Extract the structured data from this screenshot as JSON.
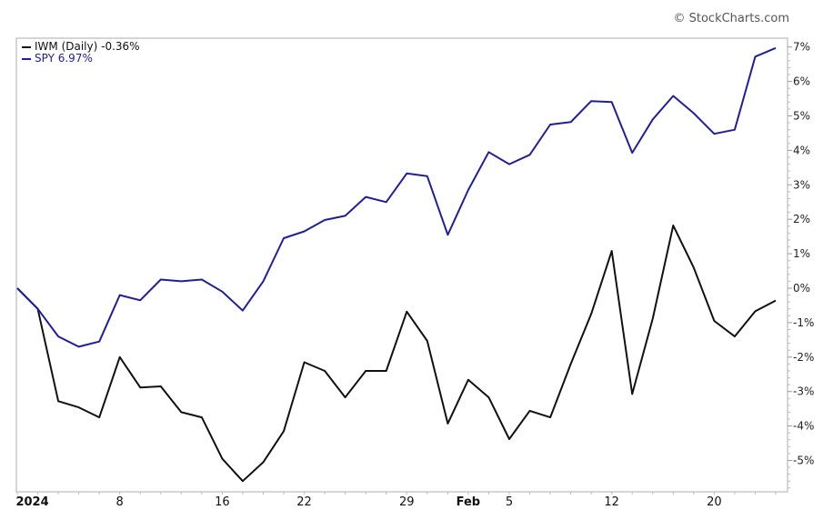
{
  "watermark": "© StockCharts.com",
  "chart_data": {
    "type": "line",
    "x": [
      "2023-12-29",
      "2024-01-02",
      "2024-01-03",
      "2024-01-04",
      "2024-01-05",
      "2024-01-08",
      "2024-01-09",
      "2024-01-10",
      "2024-01-11",
      "2024-01-12",
      "2024-01-16",
      "2024-01-17",
      "2024-01-18",
      "2024-01-19",
      "2024-01-22",
      "2024-01-23",
      "2024-01-24",
      "2024-01-25",
      "2024-01-26",
      "2024-01-29",
      "2024-01-30",
      "2024-01-31",
      "2024-02-01",
      "2024-02-02",
      "2024-02-05",
      "2024-02-06",
      "2024-02-07",
      "2024-02-08",
      "2024-02-09",
      "2024-02-12",
      "2024-02-13",
      "2024-02-14",
      "2024-02-15",
      "2024-02-16",
      "2024-02-20",
      "2024-02-21",
      "2024-02-22",
      "2024-02-23"
    ],
    "series": [
      {
        "name": "IWM (Daily) -0.36%",
        "color": "#111111",
        "values": [
          0,
          -0.6,
          -3.28,
          -3.46,
          -3.75,
          -2.0,
          -2.88,
          -2.85,
          -3.6,
          -3.75,
          -4.95,
          -5.6,
          -5.05,
          -4.15,
          -2.15,
          -2.4,
          -3.17,
          -2.4,
          -2.4,
          -0.68,
          -1.53,
          -3.93,
          -2.66,
          -3.17,
          -4.38,
          -3.56,
          -3.75,
          -2.2,
          -0.75,
          1.08,
          -3.07,
          -0.88,
          1.82,
          0.6,
          -0.95,
          -1.4,
          -0.67,
          -0.36
        ]
      },
      {
        "name": "SPY 6.97%",
        "color": "#1f1f9e",
        "values": [
          0,
          -0.6,
          -1.4,
          -1.7,
          -1.55,
          -0.2,
          -0.35,
          0.25,
          0.2,
          0.25,
          -0.1,
          -0.65,
          0.2,
          1.45,
          1.65,
          1.98,
          2.1,
          2.65,
          2.5,
          3.33,
          3.25,
          1.55,
          2.85,
          3.95,
          3.6,
          3.87,
          4.75,
          4.82,
          5.43,
          5.4,
          3.93,
          4.9,
          5.58,
          5.08,
          4.48,
          4.6,
          6.72,
          6.97
        ]
      }
    ],
    "x_ticks": [
      {
        "index": 1,
        "label": "2024",
        "bold": true
      },
      {
        "index": 5,
        "label": "8"
      },
      {
        "index": 10,
        "label": "16"
      },
      {
        "index": 14,
        "label": "22"
      },
      {
        "index": 19,
        "label": "29"
      },
      {
        "index": 22,
        "label": "Feb",
        "bold": true
      },
      {
        "index": 24,
        "label": "5"
      },
      {
        "index": 29,
        "label": "12"
      },
      {
        "index": 34,
        "label": "20"
      }
    ],
    "y_ticks": [
      "7%",
      "6%",
      "5%",
      "4%",
      "3%",
      "2%",
      "1%",
      "0%",
      "-1%",
      "-2%",
      "-3%",
      "-4%",
      "-5%"
    ],
    "y_tick_values": [
      7,
      6,
      5,
      4,
      3,
      2,
      1,
      0,
      -1,
      -2,
      -3,
      -4,
      -5
    ],
    "ylim": [
      -6.15,
      7.25
    ],
    "y_axis": "right",
    "grid": false,
    "legend": "top-left"
  }
}
